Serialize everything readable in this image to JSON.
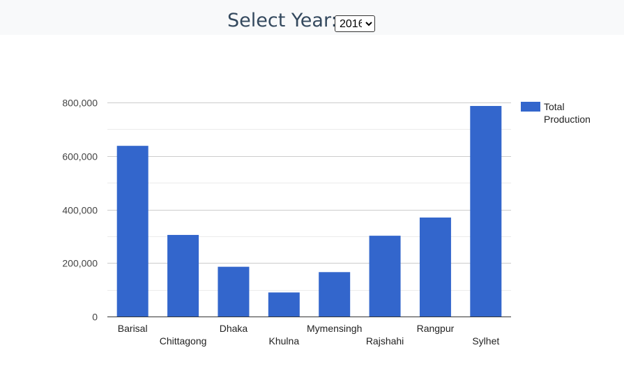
{
  "header": {
    "year_label": "Select Year:",
    "year_selected": "2016"
  },
  "chart_data": {
    "type": "bar",
    "categories": [
      "Barisal",
      "Chittagong",
      "Dhaka",
      "Khulna",
      "Mymensingh",
      "Rajshahi",
      "Rangpur",
      "Sylhet"
    ],
    "series": [
      {
        "name": "Total Production",
        "values": [
          638000,
          305000,
          186000,
          90000,
          166000,
          302000,
          370000,
          787000
        ]
      }
    ],
    "ylim": [
      0,
      800000
    ],
    "yticks": [
      0,
      200000,
      400000,
      600000,
      800000
    ],
    "ytick_labels": [
      "0",
      "200,000",
      "400,000",
      "600,000",
      "800,000"
    ],
    "grid": true,
    "legend_position": "right",
    "legend_lines": [
      "Total",
      "Production"
    ],
    "bar_color": "#3366cc"
  }
}
